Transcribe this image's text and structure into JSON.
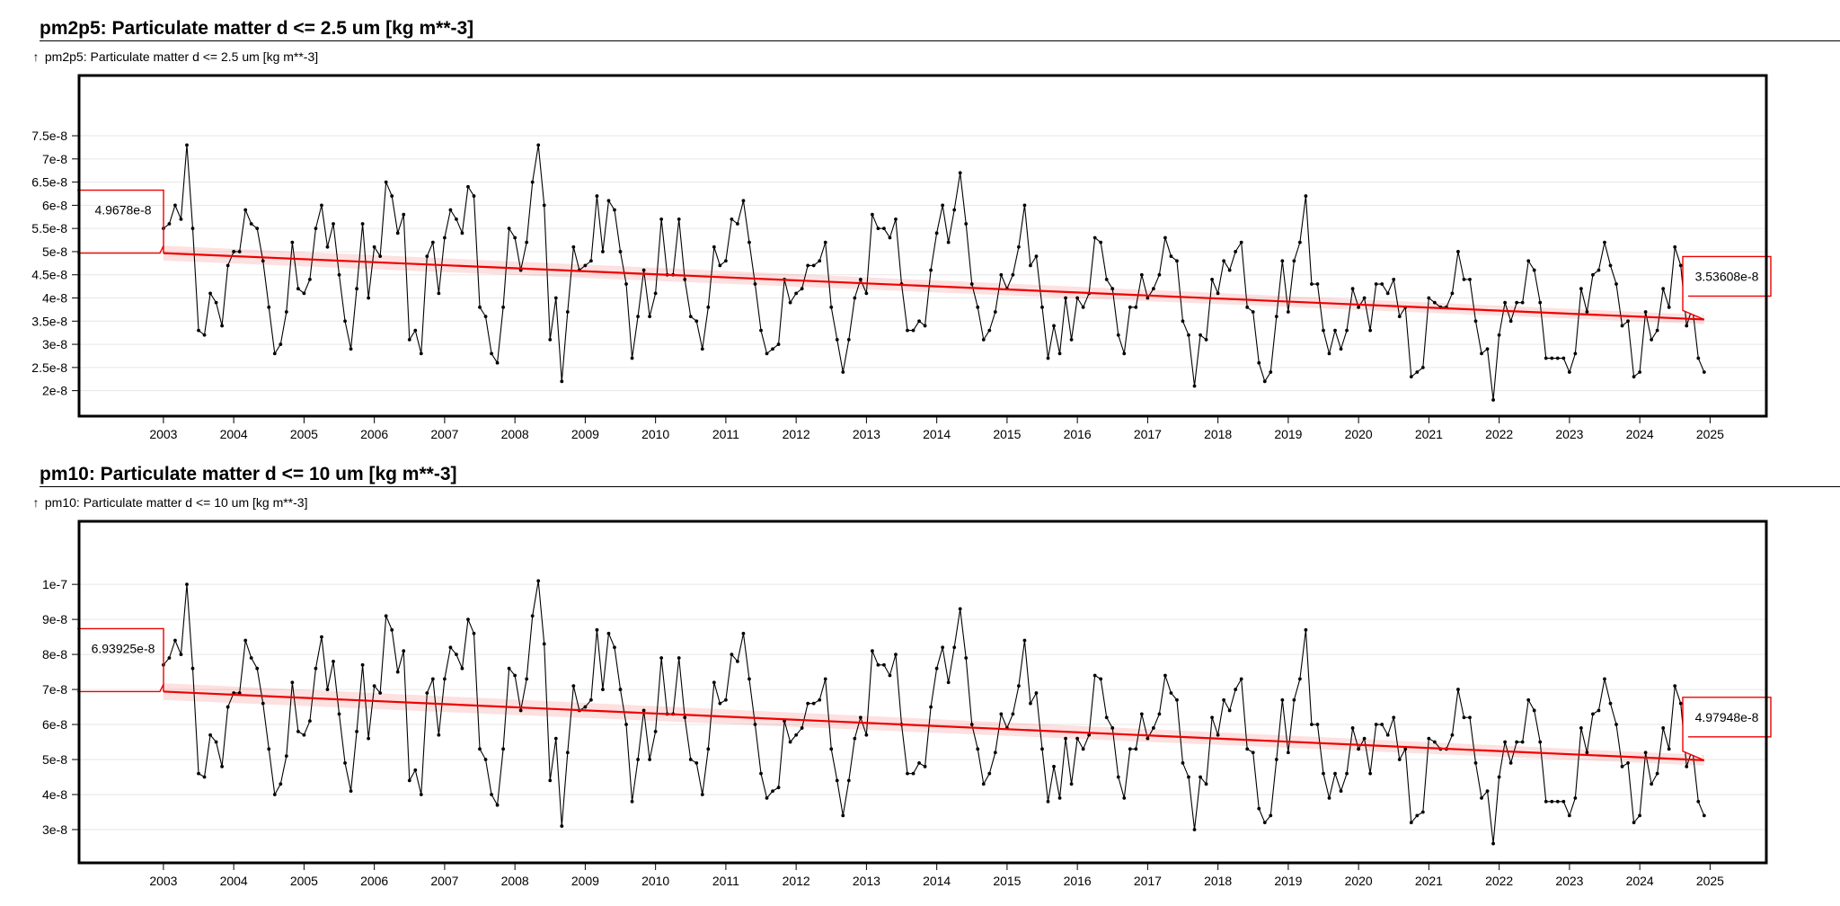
{
  "chart_data": [
    {
      "type": "line",
      "title": "pm2p5: Particulate matter d <= 2.5 um [kg m**-3]",
      "legend_label": "pm2p5: Particulate matter d <= 2.5 um [kg m**-3]",
      "legend_icon": "up-arrow-icon",
      "xlabel": "",
      "ylabel": "",
      "x_start": 2003.0,
      "x_step": 0.08333,
      "xlim": [
        2001.8,
        2025.8
      ],
      "ylim": [
        1.45e-08,
        8.8e-08
      ],
      "x_ticks": [
        "2003",
        "2004",
        "2005",
        "2006",
        "2007",
        "2008",
        "2009",
        "2010",
        "2011",
        "2012",
        "2013",
        "2014",
        "2015",
        "2016",
        "2017",
        "2018",
        "2019",
        "2020",
        "2021",
        "2022",
        "2023",
        "2024",
        "2025"
      ],
      "y_ticks": [
        {
          "v": 2e-08,
          "label": "2e-8"
        },
        {
          "v": 2.5e-08,
          "label": "2.5e-8"
        },
        {
          "v": 3e-08,
          "label": "3e-8"
        },
        {
          "v": 3.5e-08,
          "label": "3.5e-8"
        },
        {
          "v": 4e-08,
          "label": "4e-8"
        },
        {
          "v": 4.5e-08,
          "label": "4.5e-8"
        },
        {
          "v": 5e-08,
          "label": "5e-8"
        },
        {
          "v": 5.5e-08,
          "label": "5.5e-8"
        },
        {
          "v": 6e-08,
          "label": "6e-8"
        },
        {
          "v": 6.5e-08,
          "label": "6.5e-8"
        },
        {
          "v": 7e-08,
          "label": "7e-8"
        },
        {
          "v": 7.5e-08,
          "label": "7.5e-8"
        }
      ],
      "series": [
        {
          "name": "pm2p5",
          "color": "#000000",
          "values": [
            5.5,
            5.6,
            6.0,
            5.7,
            7.3,
            5.5,
            3.3,
            3.2,
            4.1,
            3.9,
            3.4,
            4.7,
            5.0,
            5.0,
            5.9,
            5.6,
            5.5,
            4.8,
            3.8,
            2.8,
            3.0,
            3.7,
            5.2,
            4.2,
            4.1,
            4.4,
            5.5,
            6.0,
            5.1,
            5.6,
            4.5,
            3.5,
            2.9,
            4.2,
            5.6,
            4.0,
            5.1,
            4.9,
            6.5,
            6.2,
            5.4,
            5.8,
            3.1,
            3.3,
            2.8,
            4.9,
            5.2,
            4.1,
            5.3,
            5.9,
            5.7,
            5.4,
            6.4,
            6.2,
            3.8,
            3.6,
            2.8,
            2.6,
            3.8,
            5.5,
            5.3,
            4.6,
            5.2,
            6.5,
            7.3,
            6.0,
            3.1,
            4.0,
            2.2,
            3.7,
            5.1,
            4.6,
            4.7,
            4.8,
            6.2,
            5.0,
            6.1,
            5.9,
            5.0,
            4.3,
            2.7,
            3.6,
            4.6,
            3.6,
            4.1,
            5.7,
            4.5,
            4.5,
            5.7,
            4.4,
            3.6,
            3.5,
            2.9,
            3.8,
            5.1,
            4.7,
            4.8,
            5.7,
            5.6,
            6.1,
            5.2,
            4.3,
            3.3,
            2.8,
            2.9,
            3.0,
            4.4,
            3.9,
            4.1,
            4.2,
            4.7,
            4.7,
            4.8,
            5.2,
            3.8,
            3.1,
            2.4,
            3.1,
            4.0,
            4.4,
            4.1,
            5.8,
            5.5,
            5.5,
            5.3,
            5.7,
            4.3,
            3.3,
            3.3,
            3.5,
            3.4,
            4.6,
            5.4,
            6.0,
            5.2,
            5.9,
            6.7,
            5.6,
            4.3,
            3.8,
            3.1,
            3.3,
            3.7,
            4.5,
            4.2,
            4.5,
            5.1,
            6.0,
            4.7,
            4.9,
            3.8,
            2.7,
            3.4,
            2.8,
            4.0,
            3.1,
            4.0,
            3.8,
            4.1,
            5.3,
            5.2,
            4.4,
            4.2,
            3.2,
            2.8,
            3.8,
            3.8,
            4.5,
            4.0,
            4.2,
            4.5,
            5.3,
            4.9,
            4.8,
            3.5,
            3.2,
            2.1,
            3.2,
            3.1,
            4.4,
            4.1,
            4.8,
            4.6,
            5.0,
            5.2,
            3.8,
            3.7,
            2.6,
            2.2,
            2.4,
            3.6,
            4.8,
            3.7,
            4.8,
            5.2,
            6.2,
            4.3,
            4.3,
            3.3,
            2.8,
            3.3,
            2.9,
            3.3,
            4.2,
            3.8,
            4.0,
            3.3,
            4.3,
            4.3,
            4.1,
            4.4,
            3.6,
            3.8,
            2.3,
            2.4,
            2.5,
            4.0,
            3.9,
            3.8,
            3.8,
            4.1,
            5.0,
            4.4,
            4.4,
            3.5,
            2.8,
            2.9,
            1.8,
            3.2,
            3.9,
            3.5,
            3.9,
            3.9,
            4.8,
            4.6,
            3.9,
            2.7,
            2.7,
            2.7,
            2.7,
            2.4,
            2.8,
            4.2,
            3.7,
            4.5,
            4.6,
            5.2,
            4.7,
            4.3,
            3.4,
            3.5,
            2.3,
            2.4,
            3.7,
            3.1,
            3.3,
            4.2,
            3.8,
            5.1,
            4.7,
            3.4,
            3.8,
            2.7,
            2.4
          ],
          "value_scale": 1e-08
        }
      ],
      "trend": {
        "color": "#ee0000",
        "start": 4.9678e-08,
        "end": 3.53608e-08,
        "start_label": "4.9678e-8",
        "end_label": "3.53608e-8",
        "band": 1e-09
      }
    },
    {
      "type": "line",
      "title": "pm10: Particulate matter d <= 10 um [kg m**-3]",
      "legend_label": "pm10: Particulate matter d <= 10 um [kg m**-3]",
      "legend_icon": "up-arrow-icon",
      "xlabel": "",
      "ylabel": "",
      "x_start": 2003.0,
      "x_step": 0.08333,
      "xlim": [
        2001.8,
        2025.8
      ],
      "ylim": [
        2.05e-08,
        1.18e-07
      ],
      "x_ticks": [
        "2003",
        "2004",
        "2005",
        "2006",
        "2007",
        "2008",
        "2009",
        "2010",
        "2011",
        "2012",
        "2013",
        "2014",
        "2015",
        "2016",
        "2017",
        "2018",
        "2019",
        "2020",
        "2021",
        "2022",
        "2023",
        "2024",
        "2025"
      ],
      "y_ticks": [
        {
          "v": 3e-08,
          "label": "3e-8"
        },
        {
          "v": 4e-08,
          "label": "4e-8"
        },
        {
          "v": 5e-08,
          "label": "5e-8"
        },
        {
          "v": 6e-08,
          "label": "6e-8"
        },
        {
          "v": 7e-08,
          "label": "7e-8"
        },
        {
          "v": 8e-08,
          "label": "8e-8"
        },
        {
          "v": 9e-08,
          "label": "9e-8"
        },
        {
          "v": 1e-07,
          "label": "1e-7"
        }
      ],
      "series": [
        {
          "name": "pm10",
          "color": "#000000",
          "values": [
            7.7,
            7.9,
            8.4,
            8.0,
            10.0,
            7.6,
            4.6,
            4.5,
            5.7,
            5.5,
            4.8,
            6.5,
            6.9,
            6.9,
            8.4,
            7.9,
            7.6,
            6.6,
            5.3,
            4.0,
            4.3,
            5.1,
            7.2,
            5.8,
            5.7,
            6.1,
            7.6,
            8.5,
            7.0,
            7.8,
            6.3,
            4.9,
            4.1,
            5.8,
            7.7,
            5.6,
            7.1,
            6.9,
            9.1,
            8.7,
            7.5,
            8.1,
            4.4,
            4.7,
            4.0,
            6.9,
            7.3,
            5.7,
            7.3,
            8.2,
            8.0,
            7.6,
            9.0,
            8.6,
            5.3,
            5.0,
            4.0,
            3.7,
            5.3,
            7.6,
            7.4,
            6.4,
            7.3,
            9.1,
            10.1,
            8.3,
            4.4,
            5.6,
            3.1,
            5.2,
            7.1,
            6.4,
            6.5,
            6.7,
            8.7,
            7.0,
            8.6,
            8.2,
            7.0,
            6.0,
            3.8,
            5.0,
            6.4,
            5.0,
            5.8,
            7.9,
            6.3,
            6.3,
            7.9,
            6.2,
            5.0,
            4.9,
            4.0,
            5.3,
            7.2,
            6.6,
            6.7,
            8.0,
            7.8,
            8.6,
            7.3,
            6.0,
            4.6,
            3.9,
            4.1,
            4.2,
            6.1,
            5.5,
            5.7,
            5.9,
            6.6,
            6.6,
            6.7,
            7.3,
            5.3,
            4.4,
            3.4,
            4.4,
            5.6,
            6.2,
            5.7,
            8.1,
            7.7,
            7.7,
            7.4,
            8.0,
            6.0,
            4.6,
            4.6,
            4.9,
            4.8,
            6.5,
            7.6,
            8.2,
            7.2,
            8.2,
            9.3,
            7.9,
            6.0,
            5.3,
            4.3,
            4.6,
            5.2,
            6.3,
            5.9,
            6.3,
            7.1,
            8.4,
            6.6,
            6.9,
            5.3,
            3.8,
            4.8,
            3.9,
            5.6,
            4.3,
            5.6,
            5.3,
            5.7,
            7.4,
            7.3,
            6.2,
            5.9,
            4.5,
            3.9,
            5.3,
            5.3,
            6.3,
            5.6,
            5.9,
            6.3,
            7.4,
            6.9,
            6.7,
            4.9,
            4.5,
            3.0,
            4.5,
            4.3,
            6.2,
            5.7,
            6.7,
            6.4,
            7.0,
            7.3,
            5.3,
            5.2,
            3.6,
            3.2,
            3.4,
            5.0,
            6.7,
            5.2,
            6.7,
            7.3,
            8.7,
            6.0,
            6.0,
            4.6,
            3.9,
            4.6,
            4.1,
            4.6,
            5.9,
            5.3,
            5.6,
            4.6,
            6.0,
            6.0,
            5.7,
            6.2,
            5.0,
            5.3,
            3.2,
            3.4,
            3.5,
            5.6,
            5.5,
            5.3,
            5.3,
            5.7,
            7.0,
            6.2,
            6.2,
            4.9,
            3.9,
            4.1,
            2.6,
            4.5,
            5.5,
            4.9,
            5.5,
            5.5,
            6.7,
            6.4,
            5.5,
            3.8,
            3.8,
            3.8,
            3.8,
            3.4,
            3.9,
            5.9,
            5.2,
            6.3,
            6.4,
            7.3,
            6.6,
            6.0,
            4.8,
            4.9,
            3.2,
            3.4,
            5.2,
            4.3,
            4.6,
            5.9,
            5.3,
            7.1,
            6.6,
            4.8,
            5.3,
            3.8,
            3.4
          ],
          "value_scale": 1e-08
        }
      ],
      "trend": {
        "color": "#ee0000",
        "start": 6.93925e-08,
        "end": 4.97948e-08,
        "start_label": "6.93925e-8",
        "end_label": "4.97948e-8",
        "band": 1.5e-09
      }
    }
  ]
}
